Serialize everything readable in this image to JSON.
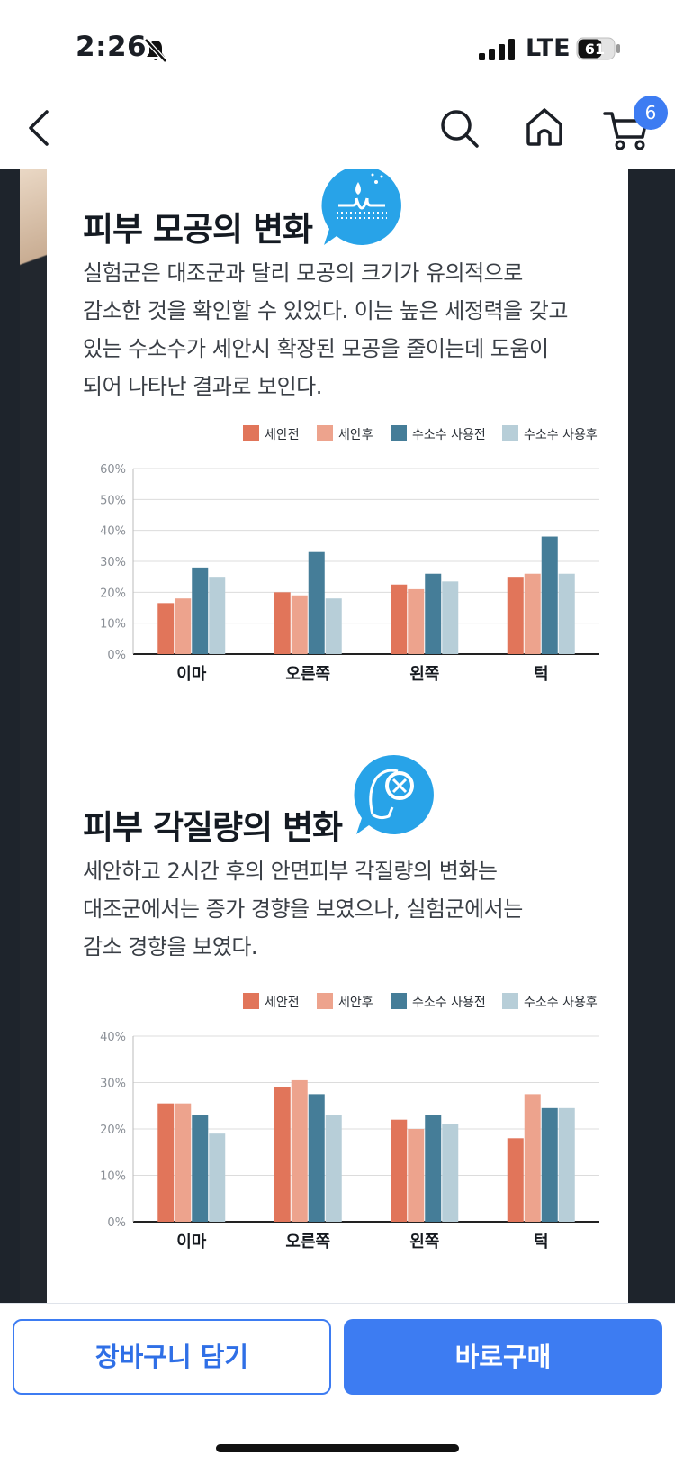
{
  "status": {
    "time": "2:26",
    "network": "LTE",
    "battery": "61"
  },
  "nav": {
    "cart_count": "6"
  },
  "sections": [
    {
      "title": "피부 모공의 변화",
      "body": [
        "실험군은 대조군과 달리 모공의 크기가 유의적으로",
        "감소한 것을 확인할 수 있었다. 이는 높은 세정력을 갖고",
        "있는 수소수가 세안시 확장된 모공을 줄이는데 도움이",
        "되어 나타난 결과로 보인다."
      ],
      "icon": "pore-water-icon"
    },
    {
      "title": "피부 각질량의 변화",
      "body": [
        "세안하고 2시간 후의 안면피부 각질량의 변화는",
        "대조군에서는 증가 경향을 보였으나, 실험군에서는",
        "감소 경향을 보였다."
      ],
      "icon": "face-magnifier-icon"
    }
  ],
  "colors": {
    "s1": "#e1755a",
    "s2": "#eda38d",
    "s3": "#457d98",
    "s4": "#b7ced8",
    "accent": "#3d7cf2",
    "icon_bg": "#28a3e8"
  },
  "chart_data": [
    {
      "type": "bar",
      "categories": [
        "이마",
        "오른쪽",
        "왼쪽",
        "턱"
      ],
      "series": [
        {
          "name": "세안전",
          "values": [
            16.5,
            20,
            22.5,
            25
          ]
        },
        {
          "name": "세안후",
          "values": [
            18,
            19,
            21,
            26
          ]
        },
        {
          "name": "수소수 사용전",
          "values": [
            28,
            33,
            26,
            38
          ]
        },
        {
          "name": "수소수 사용후",
          "values": [
            25,
            18,
            23.5,
            26
          ]
        }
      ],
      "yticks": [
        "0%",
        "10%",
        "20%",
        "30%",
        "40%",
        "50%",
        "60%"
      ],
      "ylim": [
        0,
        60
      ],
      "legend": "top-right",
      "grid": true
    },
    {
      "type": "bar",
      "categories": [
        "이마",
        "오른쪽",
        "왼쪽",
        "턱"
      ],
      "series": [
        {
          "name": "세안전",
          "values": [
            25.5,
            29,
            22,
            18
          ]
        },
        {
          "name": "세안후",
          "values": [
            25.5,
            30.5,
            20,
            27.5
          ]
        },
        {
          "name": "수소수 사용전",
          "values": [
            23,
            27.5,
            23,
            24.5
          ]
        },
        {
          "name": "수소수 사용후",
          "values": [
            19,
            23,
            21,
            24.5
          ]
        }
      ],
      "yticks": [
        "0%",
        "10%",
        "20%",
        "30%",
        "40%"
      ],
      "ylim": [
        0,
        40
      ],
      "legend": "top-right",
      "grid": true
    }
  ],
  "bottom": {
    "cart_label": "장바구니 담기",
    "buy_label": "바로구매"
  }
}
